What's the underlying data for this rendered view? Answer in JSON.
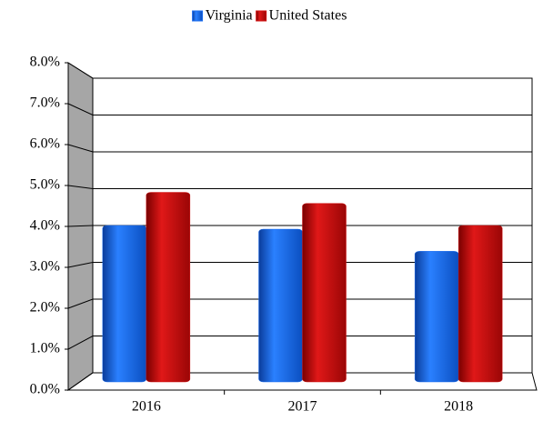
{
  "chart_data": {
    "type": "bar",
    "categories": [
      "2016",
      "2017",
      "2018"
    ],
    "series": [
      {
        "name": "Virginia",
        "color": "#1a6cf0",
        "values": [
          4.0,
          3.9,
          3.3
        ]
      },
      {
        "name": "United States",
        "color": "#d01010",
        "values": [
          4.9,
          4.6,
          4.0
        ]
      }
    ],
    "ylim": [
      0,
      8
    ],
    "yticks": [
      {
        "value": 0,
        "label": "0.0%"
      },
      {
        "value": 1,
        "label": "1.0%"
      },
      {
        "value": 2,
        "label": "2.0%"
      },
      {
        "value": 3,
        "label": "3.0%"
      },
      {
        "value": 4,
        "label": "4.0%"
      },
      {
        "value": 5,
        "label": "5.0%"
      },
      {
        "value": 6,
        "label": "6.0%"
      },
      {
        "value": 7,
        "label": "7.0%"
      },
      {
        "value": 8,
        "label": "8.0%"
      }
    ],
    "grid": true,
    "legend": "top"
  }
}
